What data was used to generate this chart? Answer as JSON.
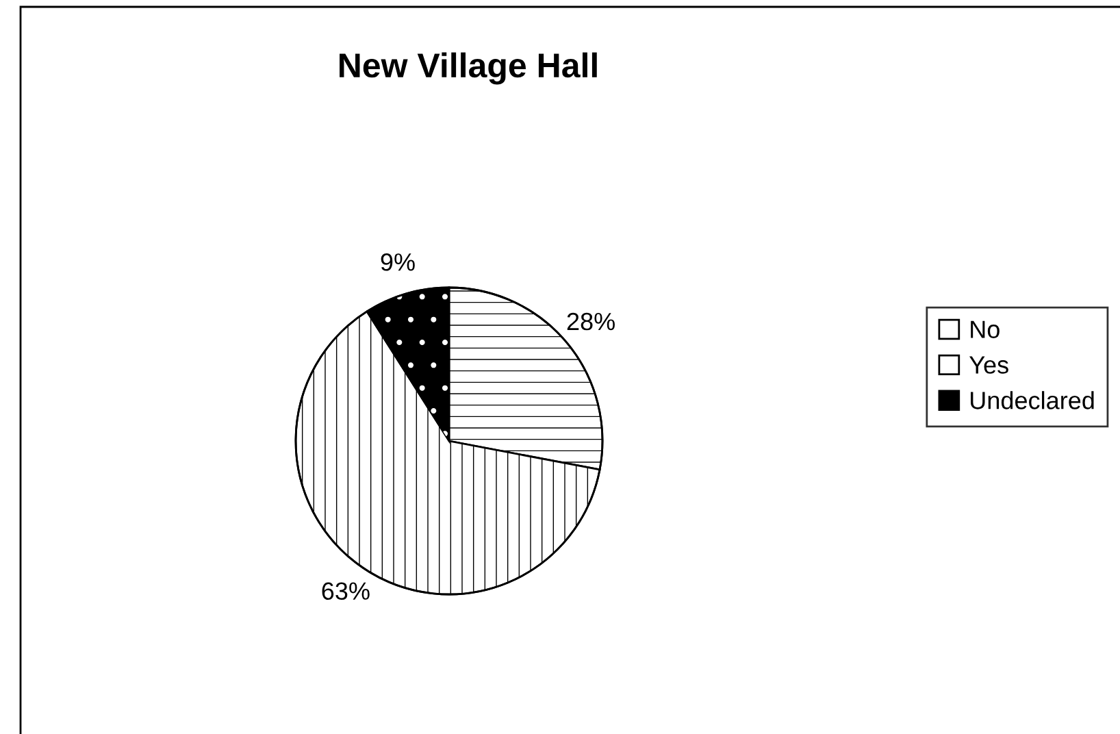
{
  "chart_data": {
    "type": "pie",
    "title": "New Village Hall",
    "categories": [
      "No",
      "Yes",
      "Undeclared"
    ],
    "values": [
      28,
      63,
      9
    ],
    "colors": [
      "#ffffff",
      "#ffffff",
      "#000000"
    ],
    "value_labels": [
      "28%",
      "63%",
      "9%"
    ],
    "legend": "right"
  }
}
